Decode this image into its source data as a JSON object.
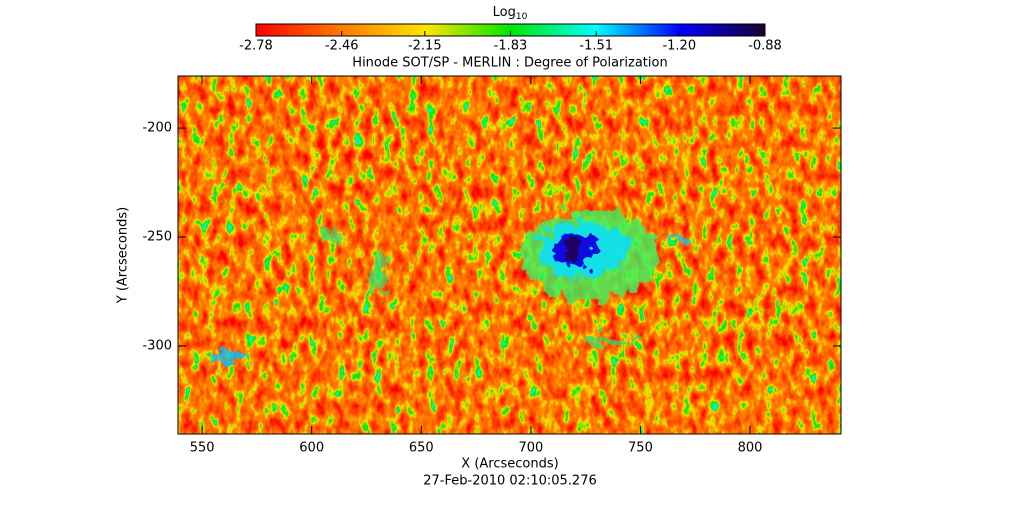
{
  "chart_data": {
    "type": "heatmap",
    "title": "Hinode SOT/SP - MERLIN : Degree of Polarization",
    "xlabel": "X (Arcseconds)",
    "ylabel": "Y (Arcseconds)",
    "footer": "27-Feb-2010 02:10:05.276",
    "xlim": [
      539,
      841.5
    ],
    "ylim": [
      -340.4,
      -176.1
    ],
    "xticks": [
      550,
      600,
      650,
      700,
      750,
      800
    ],
    "yticks": [
      -200,
      -250,
      -300
    ],
    "colorbar": {
      "label": "Log",
      "label_sub": "10",
      "lim": [
        -2.78,
        -0.88
      ],
      "ticks": [
        -2.78,
        -2.46,
        -2.15,
        -1.83,
        -1.51,
        {
          "value": -1.2,
          "label": "-1.20"
        },
        -0.88
      ],
      "colormap": [
        "#ff0000",
        "#ff7a00",
        "#ffe600",
        "#00e600",
        "#00ffff",
        "#0000ff",
        "#1a0030"
      ]
    }
  }
}
